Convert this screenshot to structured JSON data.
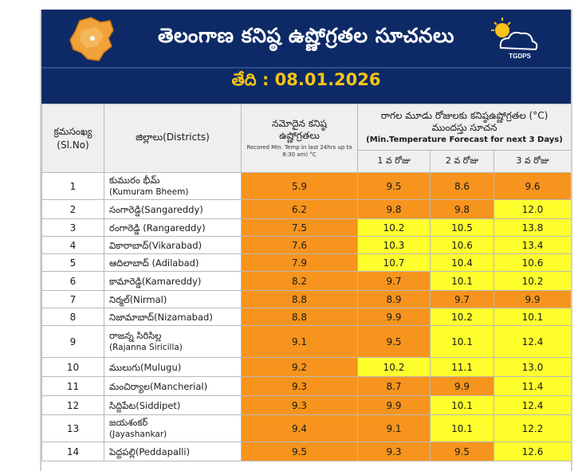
{
  "header": {
    "title": "తెలంగాణ కనిష్ఠ ఉష్ణోగ్రతల సూచనలు",
    "date": "తేది : 08.01.2026",
    "logo_text": "TGDPS"
  },
  "columns": {
    "sl": "క్రమసంఖ్య",
    "sl_en": "(Sl.No)",
    "district": "జిల్లాలు(Districts)",
    "recorded": "నమోదైన కనిష్ఠ ఉష్ణోగ్రతలు",
    "recorded_en": "Recored Min. Temp in last 24hrs up to 8:30 am) °C",
    "forecast": "రాగల మూడు రోజులకు కనిష్ఠఉష్ణోగ్రతల (°C) ముందస్తు సూచన",
    "forecast_en": "(Min.Temperature Forecast for next 3 Days)",
    "day1": "1 వ రోజు",
    "day2": "2 వ రోజు",
    "day3": "3 వ రోజు"
  },
  "rows": [
    {
      "sl": "1",
      "district": "కుమురం భీమ్",
      "district_en": "(Kumuram Bheem)",
      "recorded": "5.9",
      "d1": "9.5",
      "d2": "8.6",
      "d3": "9.6"
    },
    {
      "sl": "2",
      "district": "సంగారెడ్డి(Sangareddy)",
      "district_en": "",
      "recorded": "6.2",
      "d1": "9.8",
      "d2": "9.8",
      "d3": "12.0"
    },
    {
      "sl": "3",
      "district": "రంగారెడ్డి (Rangareddy)",
      "district_en": "",
      "recorded": "7.5",
      "d1": "10.2",
      "d2": "10.5",
      "d3": "13.8"
    },
    {
      "sl": "4",
      "district": "వికారాబాద్(Vikarabad)",
      "district_en": "",
      "recorded": "7.6",
      "d1": "10.3",
      "d2": "10.6",
      "d3": "13.4"
    },
    {
      "sl": "5",
      "district": "ఆదిలాబాద్ (Adilabad)",
      "district_en": "",
      "recorded": "7.9",
      "d1": "10.7",
      "d2": "10.4",
      "d3": "10.6"
    },
    {
      "sl": "6",
      "district": "కామారెడ్డి(Kamareddy)",
      "district_en": "",
      "recorded": "8.2",
      "d1": "9.7",
      "d2": "10.1",
      "d3": "10.2"
    },
    {
      "sl": "7",
      "district": "నిర్మల్(Nirmal)",
      "district_en": "",
      "recorded": "8.8",
      "d1": "8.9",
      "d2": "9.7",
      "d3": "9.9"
    },
    {
      "sl": "8",
      "district": "నిజామాబాద్(Nizamabad)",
      "district_en": "",
      "recorded": "8.8",
      "d1": "9.9",
      "d2": "10.2",
      "d3": "10.1"
    },
    {
      "sl": "9",
      "district": "రాజన్న సిరిసిల్ల",
      "district_en": "(Rajanna Siricilla)",
      "recorded": "9.1",
      "d1": "9.5",
      "d2": "10.1",
      "d3": "12.4"
    },
    {
      "sl": "10",
      "district": "ములుగు(Mulugu)",
      "district_en": "",
      "recorded": "9.2",
      "d1": "10.2",
      "d2": "11.1",
      "d3": "13.0"
    },
    {
      "sl": "11",
      "district": "మంచిర్యాల(Mancherial)",
      "district_en": "",
      "recorded": "9.3",
      "d1": "8.7",
      "d2": "9.9",
      "d3": "11.4"
    },
    {
      "sl": "12",
      "district": "సిద్దిపేట(Siddipet)",
      "district_en": "",
      "recorded": "9.3",
      "d1": "9.9",
      "d2": "10.1",
      "d3": "12.4"
    },
    {
      "sl": "13",
      "district": "జయశంకర్",
      "district_en": "(Jayashankar)",
      "recorded": "9.4",
      "d1": "9.1",
      "d2": "10.1",
      "d3": "12.2"
    },
    {
      "sl": "14",
      "district": "పెద్దపల్లి(Peddapalli)",
      "district_en": "",
      "recorded": "9.5",
      "d1": "9.3",
      "d2": "9.5",
      "d3": "12.6"
    }
  ],
  "colors": {
    "orange": "#f7941d",
    "yellow": "#ffff2e",
    "banner": "#0d2a66",
    "date": "#f7c417"
  }
}
